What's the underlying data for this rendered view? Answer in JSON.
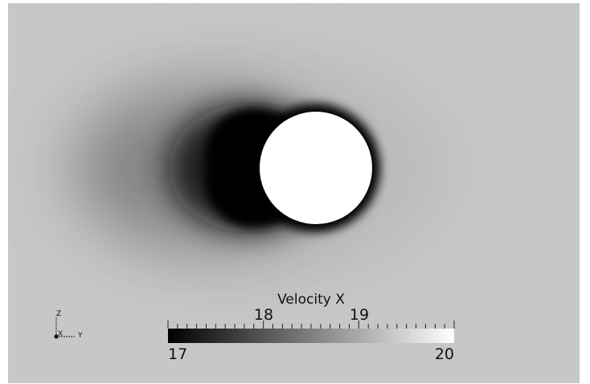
{
  "scalar_bar": {
    "title": "Velocity X",
    "min_label": "17",
    "max_label": "20",
    "mid_labels": [
      "18",
      "19"
    ],
    "range": [
      17,
      20
    ]
  },
  "orientation_axes": {
    "z_label": "Z",
    "x_label": "X",
    "y_label": "Y"
  },
  "colors": {
    "background": "#c7c7c7",
    "cylinder": "#ffffff",
    "wake": "#000000"
  }
}
